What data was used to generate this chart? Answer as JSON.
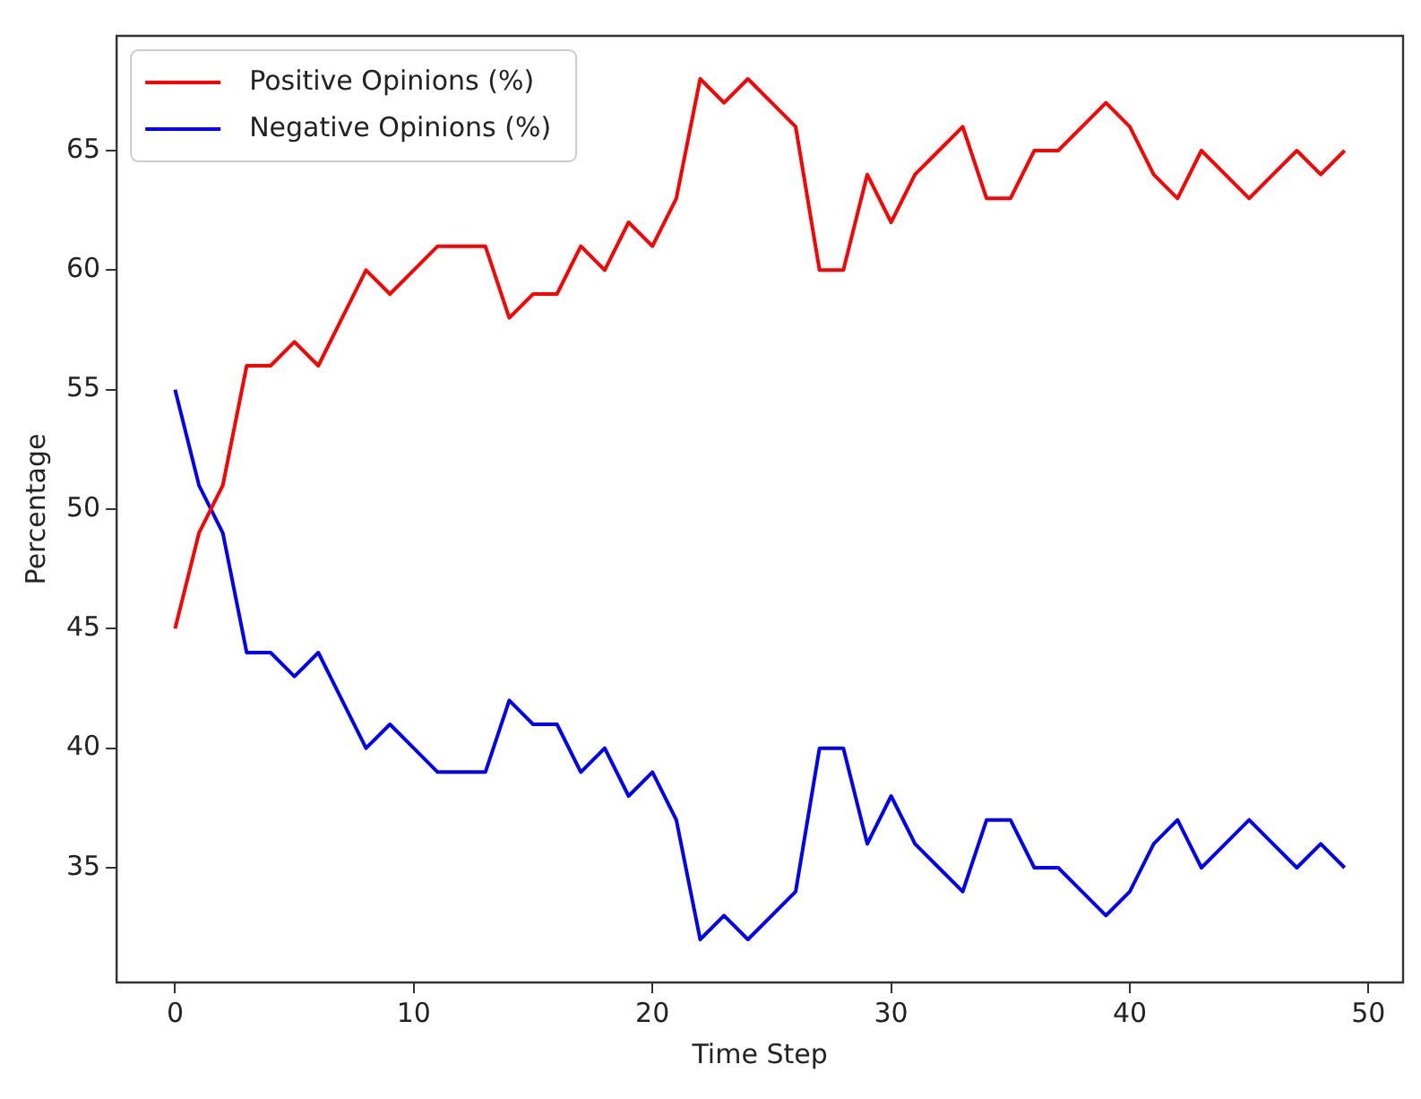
{
  "chart_data": {
    "type": "line",
    "xlabel": "Time Step",
    "ylabel": "Percentage",
    "x": [
      0,
      1,
      2,
      3,
      4,
      5,
      6,
      7,
      8,
      9,
      10,
      11,
      12,
      13,
      14,
      15,
      16,
      17,
      18,
      19,
      20,
      21,
      22,
      23,
      24,
      25,
      26,
      27,
      28,
      29,
      30,
      31,
      32,
      33,
      34,
      35,
      36,
      37,
      38,
      39,
      40,
      41,
      42,
      43,
      44,
      45,
      46,
      47,
      48,
      49
    ],
    "series": [
      {
        "name": "Positive Opinions (%)",
        "color": "#ff0000",
        "values": [
          45,
          49,
          51,
          56,
          56,
          57,
          56,
          58,
          60,
          59,
          60,
          61,
          61,
          61,
          58,
          59,
          59,
          61,
          60,
          62,
          61,
          63,
          68,
          67,
          68,
          67,
          66,
          60,
          60,
          64,
          62,
          64,
          65,
          66,
          63,
          63,
          65,
          65,
          66,
          67,
          66,
          64,
          63,
          65,
          64,
          63,
          64,
          65,
          64,
          65
        ]
      },
      {
        "name": "Negative Opinions (%)",
        "color": "#0000ff",
        "values": [
          55,
          51,
          49,
          44,
          44,
          43,
          44,
          42,
          40,
          41,
          40,
          39,
          39,
          39,
          42,
          41,
          41,
          39,
          40,
          38,
          39,
          37,
          32,
          33,
          32,
          33,
          34,
          40,
          40,
          36,
          38,
          36,
          35,
          34,
          37,
          37,
          35,
          35,
          34,
          33,
          34,
          36,
          37,
          35,
          36,
          37,
          36,
          35,
          36,
          35
        ]
      }
    ],
    "xlim": [
      -2.45,
      51.45
    ],
    "xticks": [
      0,
      10,
      20,
      30,
      40,
      50
    ],
    "ylim": [
      30.2,
      69.8
    ],
    "yticks": [
      35,
      40,
      45,
      50,
      55,
      60,
      65
    ],
    "grid": false,
    "legend": "top left",
    "marker": "none",
    "line_style": "solid"
  }
}
